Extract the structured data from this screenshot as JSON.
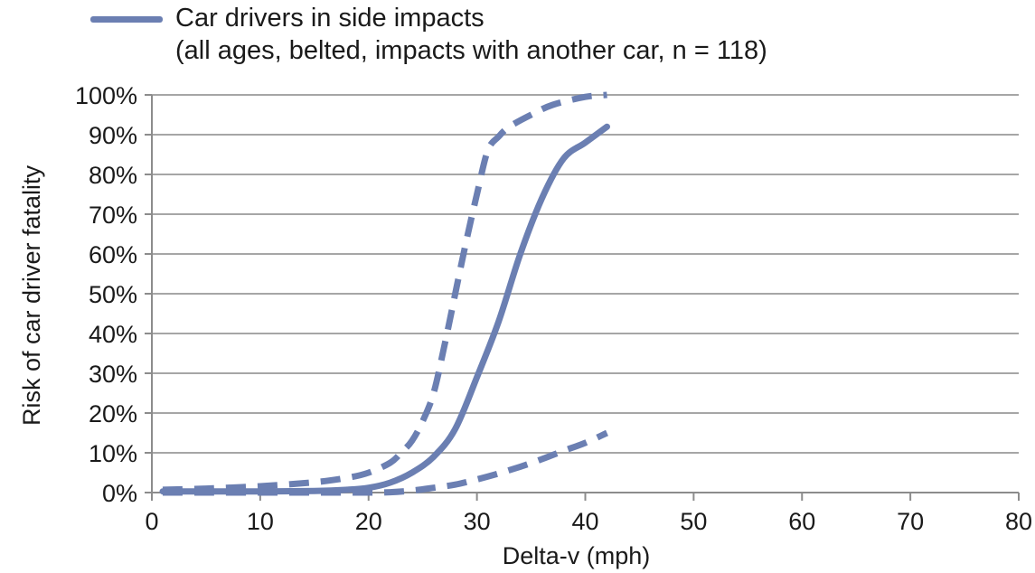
{
  "chart_data": {
    "type": "line",
    "legend": {
      "entry": "Car drivers in side impacts",
      "detail": "(all ages, belted, impacts with another car, n = 118)",
      "placement": "top-left",
      "color": "#6b7fb2"
    },
    "xlabel": "Delta-v (mph)",
    "ylabel": "Risk of car driver fatality",
    "xlim": [
      0,
      80
    ],
    "ylim": [
      0,
      100
    ],
    "x_ticks": [
      "0",
      "10",
      "20",
      "30",
      "40",
      "50",
      "60",
      "70",
      "80"
    ],
    "y_ticks": [
      "0%",
      "10%",
      "20%",
      "30%",
      "40%",
      "50%",
      "60%",
      "70%",
      "80%",
      "90%",
      "100%"
    ],
    "grid": "horizontal",
    "series": [
      {
        "style": "solid",
        "x": [
          1,
          5,
          10,
          15,
          18,
          20,
          22,
          24,
          26,
          28,
          30,
          32,
          34,
          36,
          38,
          40,
          42
        ],
        "y": [
          0.3,
          0.3,
          0.3,
          0.4,
          0.7,
          1.2,
          2.5,
          5,
          9,
          16,
          29,
          43,
          60,
          74,
          84,
          88,
          92
        ]
      },
      {
        "style": "dashed",
        "x": [
          1,
          5,
          10,
          15,
          18,
          20,
          22,
          23,
          24,
          25,
          26,
          27,
          28,
          29,
          30,
          31,
          32,
          33,
          35,
          37,
          40,
          42
        ],
        "y": [
          0.7,
          1,
          1.6,
          2.6,
          3.7,
          5,
          7.5,
          10,
          13,
          18,
          25,
          37,
          50,
          63,
          75,
          86,
          89.5,
          92,
          95,
          97.5,
          99.5,
          100
        ]
      },
      {
        "style": "dashed",
        "x": [
          1,
          5,
          10,
          15,
          20,
          22,
          24,
          26,
          28,
          30,
          32,
          34,
          36,
          38,
          40,
          42
        ],
        "y": [
          0,
          0,
          0,
          0,
          0,
          0.1,
          0.5,
          1.2,
          2,
          3.3,
          4.8,
          6.5,
          8.4,
          10.5,
          12.5,
          15
        ]
      }
    ]
  }
}
